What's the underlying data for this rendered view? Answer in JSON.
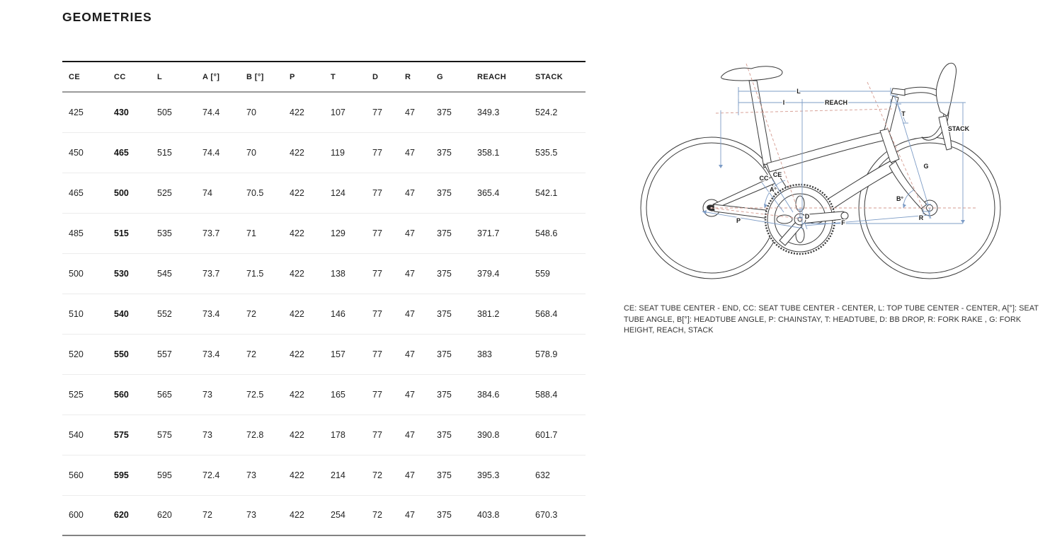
{
  "page": {
    "title": "GEOMETRIES"
  },
  "table": {
    "columns": [
      "CE",
      "CC",
      "L",
      "A [°]",
      "B [°]",
      "P",
      "T",
      "D",
      "R",
      "G",
      "REACH",
      "STACK"
    ],
    "bold_column_index": 1,
    "rows": [
      [
        "425",
        "430",
        "505",
        "74.4",
        "70",
        "422",
        "107",
        "77",
        "47",
        "375",
        "349.3",
        "524.2"
      ],
      [
        "450",
        "465",
        "515",
        "74.4",
        "70",
        "422",
        "119",
        "77",
        "47",
        "375",
        "358.1",
        "535.5"
      ],
      [
        "465",
        "500",
        "525",
        "74",
        "70.5",
        "422",
        "124",
        "77",
        "47",
        "375",
        "365.4",
        "542.1"
      ],
      [
        "485",
        "515",
        "535",
        "73.7",
        "71",
        "422",
        "129",
        "77",
        "47",
        "375",
        "371.7",
        "548.6"
      ],
      [
        "500",
        "530",
        "545",
        "73.7",
        "71.5",
        "422",
        "138",
        "77",
        "47",
        "375",
        "379.4",
        "559"
      ],
      [
        "510",
        "540",
        "552",
        "73.4",
        "72",
        "422",
        "146",
        "77",
        "47",
        "375",
        "381.2",
        "568.4"
      ],
      [
        "520",
        "550",
        "557",
        "73.4",
        "72",
        "422",
        "157",
        "77",
        "47",
        "375",
        "383",
        "578.9"
      ],
      [
        "525",
        "560",
        "565",
        "73",
        "72.5",
        "422",
        "165",
        "77",
        "47",
        "375",
        "384.6",
        "588.4"
      ],
      [
        "540",
        "575",
        "575",
        "73",
        "72.8",
        "422",
        "178",
        "77",
        "47",
        "375",
        "390.8",
        "601.7"
      ],
      [
        "560",
        "595",
        "595",
        "72.4",
        "73",
        "422",
        "214",
        "72",
        "47",
        "375",
        "395.3",
        "632"
      ],
      [
        "600",
        "620",
        "620",
        "72",
        "73",
        "422",
        "254",
        "72",
        "47",
        "375",
        "403.8",
        "670.3"
      ]
    ]
  },
  "diagram": {
    "labels": {
      "L": "L",
      "I": "I",
      "REACH": "REACH",
      "STACK": "STACK",
      "T": "T",
      "G": "G",
      "B_deg": "B°",
      "R": "R",
      "D": "D",
      "F": "F",
      "P": "P",
      "CC": "CC",
      "CE": "CE",
      "A_deg": "A°"
    },
    "colors": {
      "measure_blue": "#7d9cc6",
      "axis_dashed": "#d59a8f",
      "bike_line": "#3a3a3a"
    }
  },
  "caption": {
    "lines": [
      "CE: SEAT TUBE CENTER - END, CC: SEAT TUBE CENTER - CENTER, L: TOP TUBE CENTER - CENTER, A[°]: SEAT",
      "TUBE ANGLE, B[°]: HEADTUBE ANGLE, P: CHAINSTAY, T: HEADTUBE, D: BB DROP, R: FORK RAKE , G: FORK",
      "HEIGHT, REACH, STACK"
    ]
  }
}
